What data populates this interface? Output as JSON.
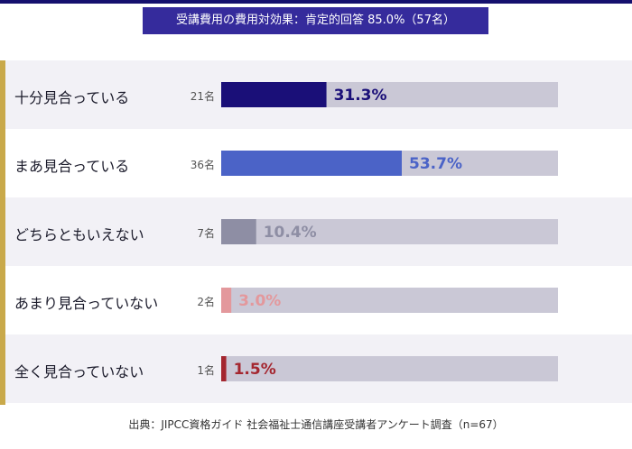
{
  "title": "受講費用の費用対効果：肯定的回答 85.0%（57名）",
  "source": "出典：JIPCC資格ガイド 社会福祉士通信講座受講者アンケート調査（n=67）",
  "chart_data": {
    "type": "bar",
    "orientation": "horizontal",
    "categories": [
      "十分見合っている",
      "まあ見合っている",
      "どちらともいえない",
      "あまり見合っていない",
      "全く見合っていない"
    ],
    "counts": [
      "21名",
      "36名",
      "7名",
      "2名",
      "1名"
    ],
    "values": [
      31.3,
      53.7,
      10.4,
      3.0,
      1.5
    ],
    "value_labels": [
      "31.3%",
      "53.7%",
      "10.4%",
      "3.0%",
      "1.5%"
    ],
    "xlim": [
      0,
      100
    ],
    "colors": [
      "#1a0f78",
      "#4b63c7",
      "#8e8ea4",
      "#e3989c",
      "#a4262f"
    ],
    "track_color": "#cac8d6"
  }
}
